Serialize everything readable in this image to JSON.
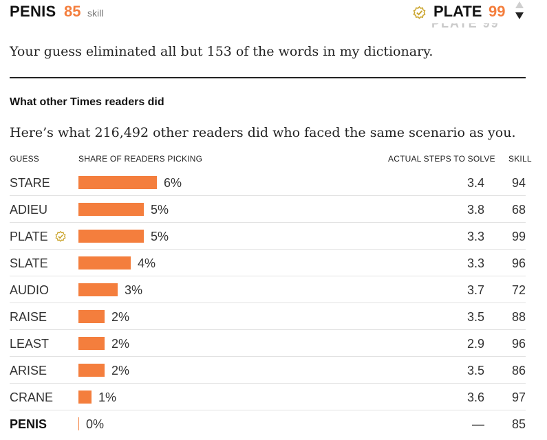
{
  "header": {
    "guess_word": "PENIS",
    "guess_score": "85",
    "guess_skill_label": "skill",
    "best_word": "PLATE",
    "best_score": "99",
    "ghost_text": "PLATE 99",
    "best_icon": "gold-check-badge-icon"
  },
  "result_text": "Your guess eliminated all but 153 of the words in my dictionary.",
  "section_title": "What other Times readers did",
  "readers_text": "Here’s what 216,492 other readers did who faced the same scenario as you.",
  "table": {
    "headers": {
      "guess": "GUESS",
      "share": "SHARE OF READERS PICKING",
      "steps": "ACTUAL STEPS TO SOLVE",
      "skill": "SKILL"
    },
    "rows": [
      {
        "word": "STARE",
        "share_pct": 6,
        "share_label": "6%",
        "steps": "3.4",
        "skill": "94"
      },
      {
        "word": "ADIEU",
        "share_pct": 5,
        "share_label": "5%",
        "steps": "3.8",
        "skill": "68"
      },
      {
        "word": "PLATE",
        "share_pct": 5,
        "share_label": "5%",
        "steps": "3.3",
        "skill": "99",
        "icon": "gold-check-badge-icon"
      },
      {
        "word": "SLATE",
        "share_pct": 4,
        "share_label": "4%",
        "steps": "3.3",
        "skill": "96"
      },
      {
        "word": "AUDIO",
        "share_pct": 3,
        "share_label": "3%",
        "steps": "3.7",
        "skill": "72"
      },
      {
        "word": "RAISE",
        "share_pct": 2,
        "share_label": "2%",
        "steps": "3.5",
        "skill": "88"
      },
      {
        "word": "LEAST",
        "share_pct": 2,
        "share_label": "2%",
        "steps": "2.9",
        "skill": "96"
      },
      {
        "word": "ARISE",
        "share_pct": 2,
        "share_label": "2%",
        "steps": "3.5",
        "skill": "86"
      },
      {
        "word": "CRANE",
        "share_pct": 1,
        "share_label": "1%",
        "steps": "3.6",
        "skill": "97"
      },
      {
        "word": "PENIS",
        "share_pct": 0,
        "share_label": "0%",
        "steps": "—",
        "skill": "85",
        "bold": true
      }
    ]
  },
  "colors": {
    "accent_orange": "#f47e3d",
    "badge_gold": "#c9a227"
  }
}
